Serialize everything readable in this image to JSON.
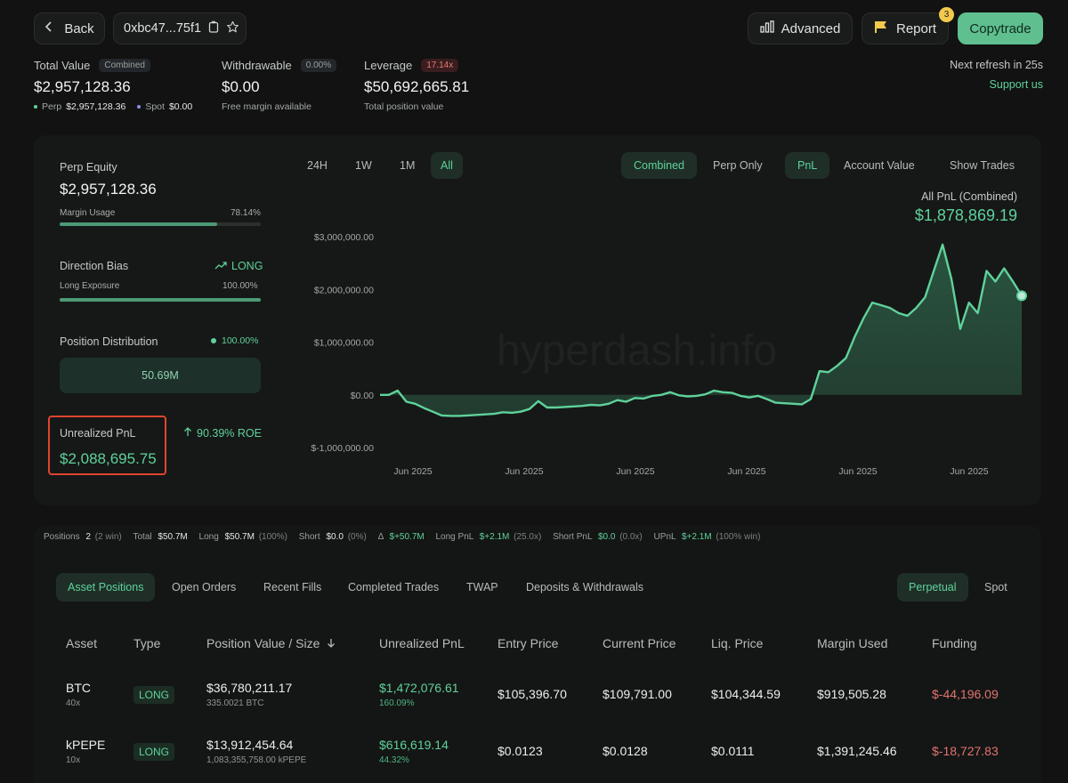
{
  "header": {
    "back_label": "Back",
    "address": "0xbc47...75f1",
    "advanced_label": "Advanced",
    "report_label": "Report",
    "report_badge": "3",
    "copytrade_label": "Copytrade",
    "refresh_text": "Next refresh in 25s",
    "support_label": "Support us"
  },
  "stats": {
    "total_value_label": "Total Value",
    "total_value_pill": "Combined",
    "total_value": "$2,957,128.36",
    "perp_label": "Perp",
    "perp_value": "$2,957,128.36",
    "spot_label": "Spot",
    "spot_value": "$0.00",
    "withdrawable_label": "Withdrawable",
    "withdrawable_pill": "0.00%",
    "withdrawable_value": "$0.00",
    "withdrawable_sub": "Free margin available",
    "leverage_label": "Leverage",
    "leverage_pill": "17.14x",
    "leverage_value": "$50,692,665.81",
    "leverage_sub": "Total position value"
  },
  "left_panel": {
    "perp_equity_label": "Perp Equity",
    "perp_equity_value": "$2,957,128.36",
    "margin_usage_label": "Margin Usage",
    "margin_usage_value": "78.14%",
    "margin_usage_fraction": 0.7814,
    "direction_bias_label": "Direction Bias",
    "direction_bias_value": "LONG",
    "long_exposure_label": "Long Exposure",
    "long_exposure_value": "100.00%",
    "long_exposure_fraction": 1.0,
    "position_distribution_label": "Position Distribution",
    "position_distribution_pct": "100.00%",
    "position_distribution_value": "50.69M",
    "unrealized_pnl_label": "Unrealized PnL",
    "unrealized_pnl_value": "$2,088,695.75",
    "roe_text": "90.39% ROE"
  },
  "chart_controls": {
    "ranges": [
      "24H",
      "1W",
      "1M",
      "All"
    ],
    "active_range": "All",
    "modes": [
      "Combined",
      "Perp Only"
    ],
    "active_mode": "Combined",
    "metrics": [
      "PnL",
      "Account Value"
    ],
    "active_metric": "PnL",
    "show_trades_label": "Show Trades"
  },
  "chart_data": {
    "type": "area",
    "title": "All PnL (Combined)",
    "headline_value": "$1,878,869.19",
    "watermark": "hyperdash.info",
    "ylim": [
      -1000000,
      3000000
    ],
    "y_ticks": [
      "$3,000,000.00",
      "$2,000,000.00",
      "$1,000,000.00",
      "$0.00",
      "$-1,000,000.00"
    ],
    "x_ticks": [
      "Jun 2025",
      "Jun 2025",
      "Jun 2025",
      "Jun 2025",
      "Jun 2025",
      "Jun 2025"
    ],
    "series": [
      {
        "values": [
          0,
          0,
          80000,
          -130000,
          -170000,
          -250000,
          -320000,
          -390000,
          -400000,
          -400000,
          -390000,
          -380000,
          -370000,
          -360000,
          -330000,
          -340000,
          -320000,
          -270000,
          -120000,
          -240000,
          -240000,
          -230000,
          -220000,
          -210000,
          -190000,
          -200000,
          -170000,
          -100000,
          -130000,
          -60000,
          -70000,
          -20000,
          0,
          50000,
          -10000,
          -30000,
          -20000,
          10000,
          80000,
          50000,
          40000,
          -20000,
          -50000,
          -20000,
          -80000,
          -150000,
          -160000,
          -170000,
          -180000,
          -80000,
          450000,
          430000,
          550000,
          700000,
          1100000,
          1450000,
          1750000,
          1700000,
          1650000,
          1550000,
          1500000,
          1650000,
          1850000,
          2350000,
          2850000,
          2200000,
          1250000,
          1750000,
          1550000,
          2350000,
          2150000,
          2400000,
          2150000,
          1880000
        ]
      }
    ],
    "line_color": "#5fd29b",
    "fill_color": "#2c5a44"
  },
  "summary": {
    "positions_label": "Positions",
    "positions_value": "2",
    "positions_sub": "(2 win)",
    "total_label": "Total",
    "total_value": "$50.7M",
    "long_label": "Long",
    "long_value": "$50.7M",
    "long_sub": "(100%)",
    "short_label": "Short",
    "short_value": "$0.0",
    "short_sub": "(0%)",
    "delta_label": "Δ",
    "delta_value": "$+50.7M",
    "long_pnl_label": "Long PnL",
    "long_pnl_value": "$+2.1M",
    "long_pnl_sub": "(25.0x)",
    "short_pnl_label": "Short PnL",
    "short_pnl_value": "$0.0",
    "short_pnl_sub": "(0.0x)",
    "upnl_label": "UPnL",
    "upnl_value": "$+2.1M",
    "upnl_sub": "(100% win)"
  },
  "tabs": [
    "Asset Positions",
    "Open Orders",
    "Recent Fills",
    "Completed Trades",
    "TWAP",
    "Deposits & Withdrawals"
  ],
  "market_tabs": [
    "Perpetual",
    "Spot"
  ],
  "table": {
    "headers": [
      "Asset",
      "Type",
      "Position Value / Size",
      "Unrealized PnL",
      "Entry Price",
      "Current Price",
      "Liq. Price",
      "Margin Used",
      "Funding"
    ],
    "rows": [
      {
        "asset": "BTC",
        "leverage": "40x",
        "type": "LONG",
        "position_value": "$36,780,211.17",
        "size": "335.0021 BTC",
        "upnl": "$1,472,076.61",
        "upnl_pct": "160.09%",
        "entry": "$105,396.70",
        "current": "$109,791.00",
        "liq": "$104,344.59",
        "margin": "$919,505.28",
        "funding": "$-44,196.09"
      },
      {
        "asset": "kPEPE",
        "leverage": "10x",
        "type": "LONG",
        "position_value": "$13,912,454.64",
        "size": "1,083,355,758.00 kPEPE",
        "upnl": "$616,619.14",
        "upnl_pct": "44.32%",
        "entry": "$0.0123",
        "current": "$0.0128",
        "liq": "$0.0111",
        "margin": "$1,391,245.46",
        "funding": "$-18,727.83"
      }
    ]
  }
}
